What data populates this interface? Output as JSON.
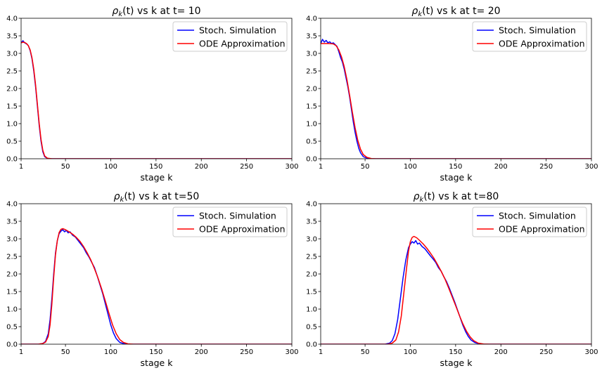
{
  "chart_data": [
    {
      "type": "line",
      "title": "ρ_k(t) vs k at t= 10",
      "title_math": "ρ",
      "title_sub": "k",
      "title_rest": "(t) vs k at t= 10",
      "xlabel": "stage k",
      "ylabel": "",
      "xlim": [
        1,
        300
      ],
      "ylim": [
        0,
        4.0
      ],
      "xticks": [
        1,
        50,
        100,
        150,
        200,
        250,
        300
      ],
      "yticks": [
        "0.0",
        "0.5",
        "1.0",
        "1.5",
        "2.0",
        "2.5",
        "3.0",
        "3.5",
        "4.0"
      ],
      "legend_position": "top-right",
      "grid": false,
      "series": [
        {
          "name": "Stoch. Simulation",
          "color": "#0000ff",
          "points": [
            [
              1,
              3.3
            ],
            [
              3,
              3.36
            ],
            [
              5,
              3.3
            ],
            [
              7,
              3.27
            ],
            [
              9,
              3.22
            ],
            [
              11,
              3.08
            ],
            [
              13,
              2.85
            ],
            [
              15,
              2.5
            ],
            [
              17,
              2.05
            ],
            [
              19,
              1.5
            ],
            [
              21,
              0.95
            ],
            [
              23,
              0.5
            ],
            [
              25,
              0.2
            ],
            [
              27,
              0.06
            ],
            [
              30,
              0.01
            ],
            [
              35,
              0.0
            ],
            [
              300,
              0.0
            ]
          ]
        },
        {
          "name": "ODE Approximation",
          "color": "#ff0000",
          "points": [
            [
              1,
              3.3
            ],
            [
              3,
              3.32
            ],
            [
              5,
              3.31
            ],
            [
              7,
              3.28
            ],
            [
              9,
              3.22
            ],
            [
              11,
              3.1
            ],
            [
              13,
              2.88
            ],
            [
              15,
              2.55
            ],
            [
              17,
              2.1
            ],
            [
              19,
              1.55
            ],
            [
              21,
              1.0
            ],
            [
              23,
              0.55
            ],
            [
              25,
              0.24
            ],
            [
              27,
              0.08
            ],
            [
              30,
              0.015
            ],
            [
              35,
              0.0
            ],
            [
              300,
              0.0
            ]
          ]
        }
      ]
    },
    {
      "type": "line",
      "title": "ρ_k(t) vs k at t= 20",
      "title_math": "ρ",
      "title_sub": "k",
      "title_rest": "(t) vs k at t= 20",
      "xlabel": "stage k",
      "ylabel": "",
      "xlim": [
        1,
        300
      ],
      "ylim": [
        0,
        4.0
      ],
      "xticks": [
        1,
        50,
        100,
        150,
        200,
        250,
        300
      ],
      "yticks": [
        "0.0",
        "0.5",
        "1.0",
        "1.5",
        "2.0",
        "2.5",
        "3.0",
        "3.5",
        "4.0"
      ],
      "legend_position": "top-right",
      "grid": false,
      "series": [
        {
          "name": "Stoch. Simulation",
          "color": "#0000ff",
          "points": [
            [
              1,
              3.28
            ],
            [
              3,
              3.4
            ],
            [
              5,
              3.32
            ],
            [
              7,
              3.37
            ],
            [
              9,
              3.3
            ],
            [
              11,
              3.33
            ],
            [
              13,
              3.28
            ],
            [
              15,
              3.3
            ],
            [
              17,
              3.25
            ],
            [
              19,
              3.2
            ],
            [
              21,
              3.05
            ],
            [
              23,
              2.88
            ],
            [
              25,
              2.75
            ],
            [
              27,
              2.55
            ],
            [
              29,
              2.3
            ],
            [
              31,
              2.05
            ],
            [
              33,
              1.75
            ],
            [
              35,
              1.4
            ],
            [
              37,
              1.05
            ],
            [
              39,
              0.75
            ],
            [
              41,
              0.5
            ],
            [
              43,
              0.3
            ],
            [
              45,
              0.17
            ],
            [
              48,
              0.06
            ],
            [
              52,
              0.015
            ],
            [
              57,
              0.0
            ],
            [
              300,
              0.0
            ]
          ]
        },
        {
          "name": "ODE Approximation",
          "color": "#ff0000",
          "points": [
            [
              1,
              3.28
            ],
            [
              5,
              3.28
            ],
            [
              10,
              3.28
            ],
            [
              15,
              3.27
            ],
            [
              18,
              3.22
            ],
            [
              21,
              3.1
            ],
            [
              24,
              2.9
            ],
            [
              27,
              2.62
            ],
            [
              30,
              2.25
            ],
            [
              33,
              1.8
            ],
            [
              36,
              1.32
            ],
            [
              39,
              0.88
            ],
            [
              42,
              0.52
            ],
            [
              45,
              0.27
            ],
            [
              48,
              0.12
            ],
            [
              52,
              0.04
            ],
            [
              57,
              0.005
            ],
            [
              62,
              0.0
            ],
            [
              300,
              0.0
            ]
          ]
        }
      ]
    },
    {
      "type": "line",
      "title": "ρ_k(t) vs k at t=50",
      "title_math": "ρ",
      "title_sub": "k",
      "title_rest": "(t) vs k at t=50",
      "xlabel": "stage k",
      "ylabel": "",
      "xlim": [
        1,
        300
      ],
      "ylim": [
        0,
        4.0
      ],
      "xticks": [
        1,
        50,
        100,
        150,
        200,
        250,
        300
      ],
      "yticks": [
        "0.0",
        "0.5",
        "1.0",
        "1.5",
        "2.0",
        "2.5",
        "3.0",
        "3.5",
        "4.0"
      ],
      "legend_position": "top-right",
      "grid": false,
      "series": [
        {
          "name": "Stoch. Simulation",
          "color": "#0000ff",
          "points": [
            [
              1,
              0.0
            ],
            [
              20,
              0.0
            ],
            [
              25,
              0.02
            ],
            [
              28,
              0.08
            ],
            [
              31,
              0.3
            ],
            [
              33,
              0.7
            ],
            [
              35,
              1.3
            ],
            [
              37,
              2.0
            ],
            [
              39,
              2.6
            ],
            [
              41,
              2.95
            ],
            [
              43,
              3.15
            ],
            [
              45,
              3.22
            ],
            [
              47,
              3.26
            ],
            [
              49,
              3.2
            ],
            [
              51,
              3.24
            ],
            [
              53,
              3.17
            ],
            [
              55,
              3.2
            ],
            [
              58,
              3.1
            ],
            [
              61,
              3.05
            ],
            [
              64,
              2.95
            ],
            [
              67,
              2.85
            ],
            [
              70,
              2.75
            ],
            [
              73,
              2.6
            ],
            [
              76,
              2.48
            ],
            [
              79,
              2.33
            ],
            [
              82,
              2.18
            ],
            [
              85,
              1.95
            ],
            [
              88,
              1.7
            ],
            [
              91,
              1.45
            ],
            [
              94,
              1.15
            ],
            [
              97,
              0.85
            ],
            [
              100,
              0.55
            ],
            [
              103,
              0.32
            ],
            [
              106,
              0.16
            ],
            [
              110,
              0.05
            ],
            [
              115,
              0.01
            ],
            [
              122,
              0.0
            ],
            [
              300,
              0.0
            ]
          ]
        },
        {
          "name": "ODE Approximation",
          "color": "#ff0000",
          "points": [
            [
              1,
              0.0
            ],
            [
              20,
              0.0
            ],
            [
              25,
              0.02
            ],
            [
              28,
              0.06
            ],
            [
              31,
              0.22
            ],
            [
              33,
              0.55
            ],
            [
              35,
              1.15
            ],
            [
              37,
              1.9
            ],
            [
              39,
              2.55
            ],
            [
              41,
              2.95
            ],
            [
              43,
              3.18
            ],
            [
              45,
              3.27
            ],
            [
              47,
              3.29
            ],
            [
              50,
              3.26
            ],
            [
              54,
              3.2
            ],
            [
              58,
              3.13
            ],
            [
              62,
              3.04
            ],
            [
              66,
              2.93
            ],
            [
              70,
              2.78
            ],
            [
              74,
              2.6
            ],
            [
              78,
              2.4
            ],
            [
              82,
              2.15
            ],
            [
              86,
              1.88
            ],
            [
              90,
              1.57
            ],
            [
              94,
              1.23
            ],
            [
              98,
              0.88
            ],
            [
              102,
              0.55
            ],
            [
              106,
              0.3
            ],
            [
              110,
              0.13
            ],
            [
              114,
              0.05
            ],
            [
              119,
              0.01
            ],
            [
              125,
              0.0
            ],
            [
              300,
              0.0
            ]
          ]
        }
      ]
    },
    {
      "type": "line",
      "title": "ρ_k(t) vs k at t=80",
      "title_math": "ρ",
      "title_sub": "k",
      "title_rest": "(t) vs k at t=80",
      "xlabel": "stage k",
      "ylabel": "",
      "xlim": [
        1,
        300
      ],
      "ylim": [
        0,
        4.0
      ],
      "xticks": [
        1,
        50,
        100,
        150,
        200,
        250,
        300
      ],
      "yticks": [
        "0.0",
        "0.5",
        "1.0",
        "1.5",
        "2.0",
        "2.5",
        "3.0",
        "3.5",
        "4.0"
      ],
      "legend_position": "top-right",
      "grid": false,
      "series": [
        {
          "name": "Stoch. Simulation",
          "color": "#0000ff",
          "points": [
            [
              1,
              0.0
            ],
            [
              72,
              0.0
            ],
            [
              77,
              0.03
            ],
            [
              80,
              0.1
            ],
            [
              83,
              0.3
            ],
            [
              86,
              0.7
            ],
            [
              89,
              1.3
            ],
            [
              92,
              1.9
            ],
            [
              95,
              2.4
            ],
            [
              98,
              2.75
            ],
            [
              100,
              2.85
            ],
            [
              102,
              2.92
            ],
            [
              104,
              2.88
            ],
            [
              106,
              2.95
            ],
            [
              108,
              2.85
            ],
            [
              110,
              2.88
            ],
            [
              113,
              2.78
            ],
            [
              116,
              2.72
            ],
            [
              119,
              2.62
            ],
            [
              122,
              2.52
            ],
            [
              125,
              2.43
            ],
            [
              128,
              2.33
            ],
            [
              131,
              2.18
            ],
            [
              134,
              2.08
            ],
            [
              137,
              1.92
            ],
            [
              140,
              1.78
            ],
            [
              143,
              1.6
            ],
            [
              146,
              1.4
            ],
            [
              149,
              1.2
            ],
            [
              152,
              0.98
            ],
            [
              155,
              0.76
            ],
            [
              158,
              0.54
            ],
            [
              161,
              0.36
            ],
            [
              164,
              0.22
            ],
            [
              167,
              0.12
            ],
            [
              171,
              0.05
            ],
            [
              176,
              0.01
            ],
            [
              183,
              0.0
            ],
            [
              300,
              0.0
            ]
          ]
        },
        {
          "name": "ODE Approximation",
          "color": "#ff0000",
          "points": [
            [
              1,
              0.0
            ],
            [
              75,
              0.0
            ],
            [
              80,
              0.03
            ],
            [
              84,
              0.12
            ],
            [
              87,
              0.35
            ],
            [
              90,
              0.8
            ],
            [
              93,
              1.5
            ],
            [
              96,
              2.2
            ],
            [
              98,
              2.65
            ],
            [
              100,
              2.92
            ],
            [
              102,
              3.04
            ],
            [
              104,
              3.07
            ],
            [
              107,
              3.03
            ],
            [
              110,
              2.96
            ],
            [
              114,
              2.86
            ],
            [
              118,
              2.74
            ],
            [
              122,
              2.6
            ],
            [
              126,
              2.45
            ],
            [
              130,
              2.27
            ],
            [
              134,
              2.08
            ],
            [
              138,
              1.87
            ],
            [
              142,
              1.62
            ],
            [
              146,
              1.36
            ],
            [
              150,
              1.1
            ],
            [
              154,
              0.83
            ],
            [
              158,
              0.58
            ],
            [
              162,
              0.37
            ],
            [
              166,
              0.21
            ],
            [
              170,
              0.1
            ],
            [
              175,
              0.03
            ],
            [
              181,
              0.005
            ],
            [
              188,
              0.0
            ],
            [
              300,
              0.0
            ]
          ]
        }
      ]
    }
  ]
}
